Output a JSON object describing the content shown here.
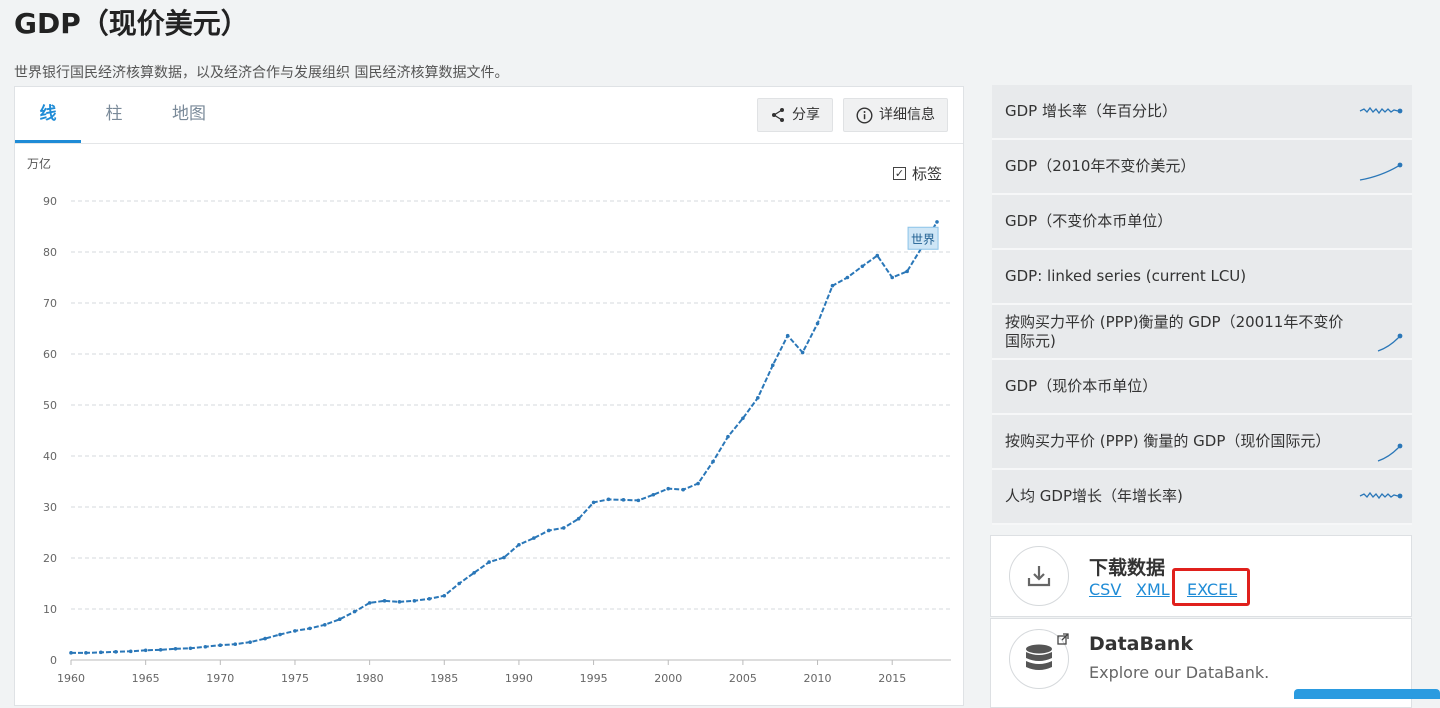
{
  "page": {
    "title": "GDP（现价美元）",
    "subtitle": "世界银行国民经济核算数据，以及经济合作与发展组织 国民经济核算数据文件。"
  },
  "tabs": [
    {
      "label": "线",
      "active": true
    },
    {
      "label": "柱",
      "active": false
    },
    {
      "label": "地图",
      "active": false
    }
  ],
  "toolbar": {
    "share_label": "分享",
    "details_label": "详细信息",
    "labels_toggle": "标签",
    "labels_checked": true
  },
  "chart_data": {
    "type": "line",
    "title": "",
    "xlabel": "",
    "ylabel": "万亿",
    "xlim": [
      1960,
      2018
    ],
    "ylim": [
      0,
      90
    ],
    "yticks": [
      "0",
      "10",
      "20",
      "30",
      "40",
      "50",
      "60",
      "70",
      "80",
      "90"
    ],
    "xticks": [
      "1960",
      "1965",
      "1970",
      "1975",
      "1980",
      "1985",
      "1990",
      "1995",
      "2000",
      "2005",
      "2010",
      "2015"
    ],
    "grid": true,
    "series": [
      {
        "name": "世界",
        "color": "#2a77b8",
        "x": [
          1960,
          1961,
          1962,
          1963,
          1964,
          1965,
          1966,
          1967,
          1968,
          1969,
          1970,
          1971,
          1972,
          1973,
          1974,
          1975,
          1976,
          1977,
          1978,
          1979,
          1980,
          1981,
          1982,
          1983,
          1984,
          1985,
          1986,
          1987,
          1988,
          1989,
          1990,
          1991,
          1992,
          1993,
          1994,
          1995,
          1996,
          1997,
          1998,
          1999,
          2000,
          2001,
          2002,
          2003,
          2004,
          2005,
          2006,
          2007,
          2008,
          2009,
          2010,
          2011,
          2012,
          2013,
          2014,
          2015,
          2016,
          2017,
          2018
        ],
        "y": [
          1.4,
          1.4,
          1.5,
          1.6,
          1.7,
          1.9,
          2.0,
          2.2,
          2.3,
          2.6,
          2.9,
          3.1,
          3.5,
          4.2,
          5.0,
          5.7,
          6.2,
          6.9,
          8.0,
          9.5,
          11.2,
          11.6,
          11.4,
          11.6,
          12.0,
          12.6,
          15.0,
          17.1,
          19.2,
          20.1,
          22.6,
          23.9,
          25.4,
          25.9,
          27.7,
          30.9,
          31.5,
          31.4,
          31.3,
          32.4,
          33.6,
          33.4,
          34.6,
          38.9,
          43.8,
          47.4,
          51.4,
          57.8,
          63.6,
          60.3,
          66.0,
          73.4,
          75.0,
          77.2,
          79.3,
          75.0,
          76.2,
          81.0,
          85.9
        ]
      }
    ],
    "annotation": {
      "text": "世界",
      "x": 2017,
      "y": 82.5
    }
  },
  "related": [
    {
      "label": "GDP 增长率（年百分比）",
      "spark": "wavy"
    },
    {
      "label": "GDP（2010年不变价美元）",
      "spark": "rising"
    },
    {
      "label": "GDP（不变价本币单位）",
      "spark": "none"
    },
    {
      "label": "GDP: linked series (current LCU)",
      "spark": "none"
    },
    {
      "label": "按购买力平价 (PPP)衡量的 GDP（20011年不变价国际元)",
      "spark": "rising-steep"
    },
    {
      "label": "GDP（现价本币单位）",
      "spark": "none"
    },
    {
      "label": "按购买力平价 (PPP) 衡量的 GDP（现价国际元）",
      "spark": "rising-steep"
    },
    {
      "label": "人均 GDP增长（年增长率)",
      "spark": "wavy"
    }
  ],
  "download": {
    "title": "下载数据",
    "links": [
      "CSV",
      "XML",
      "EXCEL"
    ]
  },
  "databank": {
    "title": "DataBank",
    "subtitle": "Explore our DataBank."
  },
  "colors": {
    "accent": "#1e8bd6",
    "line": "#2a77b8",
    "highlight": "#e0201c"
  }
}
